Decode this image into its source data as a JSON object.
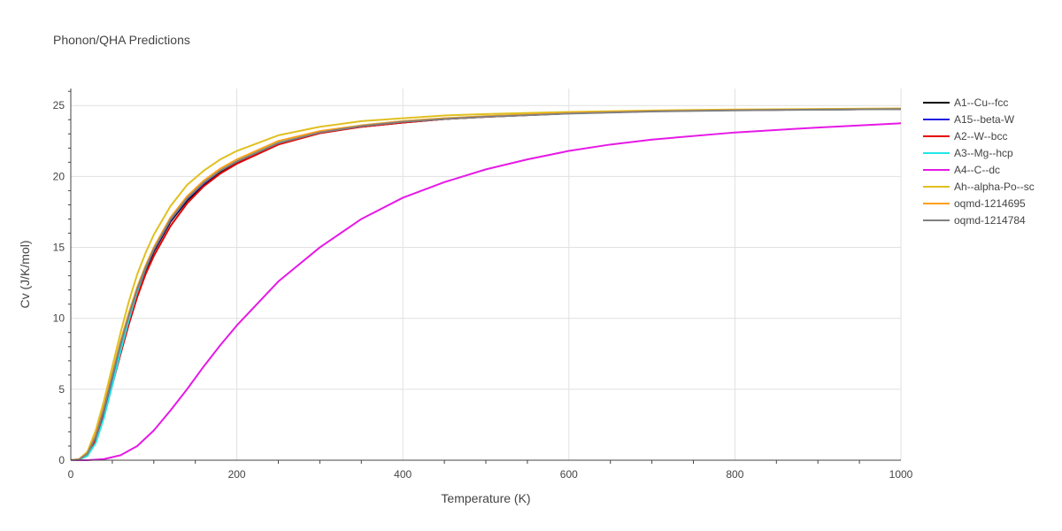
{
  "chart_data": {
    "type": "line",
    "title": "Phonon/QHA Predictions",
    "xlabel": "Temperature (K)",
    "ylabel": "Cv (J/K/mol)",
    "xlim": [
      0,
      1000
    ],
    "ylim": [
      0,
      26.2
    ],
    "xticks": [
      0,
      200,
      400,
      600,
      800,
      1000
    ],
    "yticks": [
      0,
      5,
      10,
      15,
      20,
      25
    ],
    "grid": true,
    "legend_position": "right",
    "series": [
      {
        "name": "A1--Cu--fcc",
        "color": "#000000",
        "x": [
          0,
          10,
          20,
          30,
          40,
          50,
          60,
          70,
          80,
          90,
          100,
          120,
          140,
          160,
          180,
          200,
          250,
          300,
          350,
          400,
          450,
          500,
          600,
          700,
          800,
          900,
          1000
        ],
        "y": [
          0,
          0.05,
          0.4,
          1.5,
          3.4,
          5.7,
          8.0,
          10.0,
          11.9,
          13.4,
          14.7,
          16.8,
          18.3,
          19.4,
          20.3,
          21.0,
          22.3,
          23.1,
          23.5,
          23.8,
          24.05,
          24.2,
          24.45,
          24.6,
          24.68,
          24.72,
          24.75
        ]
      },
      {
        "name": "A15--beta-W",
        "color": "#1f1fe0",
        "x": [
          0,
          10,
          20,
          30,
          40,
          50,
          60,
          70,
          80,
          90,
          100,
          120,
          140,
          160,
          180,
          200,
          250,
          300,
          350,
          400,
          450,
          500,
          600,
          700,
          800,
          900,
          1000
        ],
        "y": [
          0,
          0.05,
          0.42,
          1.6,
          3.5,
          5.8,
          8.1,
          10.1,
          12.0,
          13.5,
          14.8,
          16.9,
          18.4,
          19.5,
          20.4,
          21.05,
          22.35,
          23.1,
          23.55,
          23.85,
          24.05,
          24.22,
          24.45,
          24.6,
          24.68,
          24.72,
          24.75
        ]
      },
      {
        "name": "A2--W--bcc",
        "color": "#e60000",
        "x": [
          0,
          10,
          20,
          30,
          40,
          50,
          60,
          70,
          80,
          90,
          100,
          120,
          140,
          160,
          180,
          200,
          250,
          300,
          350,
          400,
          450,
          500,
          600,
          700,
          800,
          900,
          1000
        ],
        "y": [
          0,
          0.04,
          0.35,
          1.35,
          3.1,
          5.3,
          7.5,
          9.6,
          11.5,
          13.1,
          14.4,
          16.5,
          18.1,
          19.3,
          20.2,
          20.9,
          22.25,
          23.05,
          23.5,
          23.8,
          24.05,
          24.2,
          24.45,
          24.6,
          24.68,
          24.72,
          24.75
        ]
      },
      {
        "name": "A3--Mg--hcp",
        "color": "#22e6e6",
        "x": [
          0,
          10,
          20,
          30,
          40,
          50,
          60,
          70,
          80,
          90,
          100,
          120,
          140,
          160,
          180,
          200,
          250,
          300,
          350,
          400,
          450,
          500,
          600,
          700,
          800,
          900,
          1000
        ],
        "y": [
          0,
          0.04,
          0.3,
          1.2,
          3.0,
          5.3,
          7.7,
          9.9,
          11.9,
          13.5,
          14.9,
          17.0,
          18.5,
          19.6,
          20.45,
          21.1,
          22.4,
          23.15,
          23.6,
          23.9,
          24.1,
          24.25,
          24.47,
          24.6,
          24.68,
          24.72,
          24.75
        ]
      },
      {
        "name": "A4--C--dc",
        "color": "#e619e6",
        "x": [
          0,
          20,
          40,
          60,
          80,
          100,
          120,
          140,
          160,
          180,
          200,
          250,
          300,
          350,
          400,
          450,
          500,
          550,
          600,
          650,
          700,
          800,
          900,
          1000
        ],
        "y": [
          0,
          0.0,
          0.08,
          0.35,
          1.0,
          2.1,
          3.5,
          5.0,
          6.6,
          8.1,
          9.5,
          12.6,
          15.0,
          17.0,
          18.5,
          19.6,
          20.5,
          21.2,
          21.8,
          22.25,
          22.6,
          23.1,
          23.45,
          23.75
        ]
      },
      {
        "name": "Ah--alpha-Po--sc",
        "color": "#e0c020",
        "x": [
          0,
          10,
          20,
          30,
          40,
          50,
          60,
          70,
          80,
          90,
          100,
          120,
          140,
          160,
          180,
          200,
          250,
          300,
          350,
          400,
          450,
          500,
          600,
          700,
          800,
          900,
          1000
        ],
        "y": [
          0,
          0.08,
          0.6,
          2.1,
          4.2,
          6.6,
          9.0,
          11.2,
          13.1,
          14.6,
          15.9,
          17.9,
          19.4,
          20.4,
          21.2,
          21.8,
          22.9,
          23.5,
          23.9,
          24.1,
          24.3,
          24.4,
          24.55,
          24.65,
          24.72,
          24.76,
          24.8
        ]
      },
      {
        "name": "oqmd-1214695",
        "color": "#ff9f1a",
        "x": [
          0,
          10,
          20,
          30,
          40,
          50,
          60,
          70,
          80,
          90,
          100,
          120,
          140,
          160,
          180,
          200,
          250,
          300,
          350,
          400,
          450,
          500,
          600,
          700,
          800,
          900,
          1000
        ],
        "y": [
          0,
          0.06,
          0.5,
          1.8,
          3.8,
          6.1,
          8.4,
          10.4,
          12.2,
          13.7,
          15.0,
          17.1,
          18.6,
          19.7,
          20.55,
          21.2,
          22.5,
          23.2,
          23.6,
          23.9,
          24.1,
          24.25,
          24.47,
          24.6,
          24.68,
          24.72,
          24.76
        ]
      },
      {
        "name": "oqmd-1214784",
        "color": "#808080",
        "x": [
          0,
          10,
          20,
          30,
          40,
          50,
          60,
          70,
          80,
          90,
          100,
          120,
          140,
          160,
          180,
          200,
          250,
          300,
          350,
          400,
          450,
          500,
          600,
          700,
          800,
          900,
          1000
        ],
        "y": [
          0,
          0.05,
          0.45,
          1.65,
          3.6,
          5.9,
          8.2,
          10.2,
          12.05,
          13.55,
          14.85,
          16.95,
          18.45,
          19.55,
          20.4,
          21.05,
          22.35,
          23.1,
          23.55,
          23.85,
          24.05,
          24.2,
          24.43,
          24.58,
          24.66,
          24.71,
          24.75
        ]
      }
    ]
  }
}
